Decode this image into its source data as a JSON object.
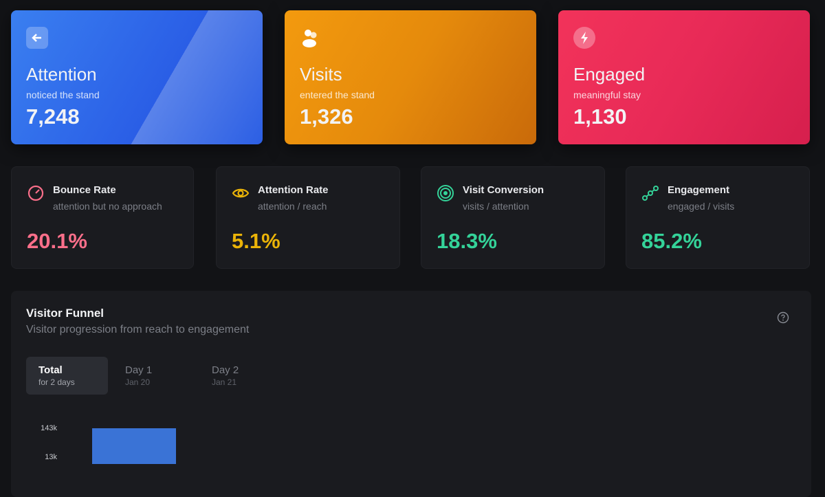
{
  "summary_cards": [
    {
      "title": "Attention",
      "subtitle": "noticed the stand",
      "value": "7,248"
    },
    {
      "title": "Visits",
      "subtitle": "entered the stand",
      "value": "1,326"
    },
    {
      "title": "Engaged",
      "subtitle": "meaningful stay",
      "value": "1,130"
    }
  ],
  "metrics": [
    {
      "title": "Bounce Rate",
      "subtitle": "attention but no approach",
      "value": "20.1%"
    },
    {
      "title": "Attention Rate",
      "subtitle": "attention / reach",
      "value": "5.1%"
    },
    {
      "title": "Visit Conversion",
      "subtitle": "visits / attention",
      "value": "18.3%"
    },
    {
      "title": "Engagement",
      "subtitle": "engaged / visits",
      "value": "85.2%"
    }
  ],
  "funnel": {
    "title": "Visitor Funnel",
    "subtitle": "Visitor progression from reach to engagement",
    "tabs": [
      {
        "label": "Total",
        "sublabel": "for 2 days"
      },
      {
        "label": "Day 1",
        "sublabel": "Jan 20"
      },
      {
        "label": "Day 2",
        "sublabel": "Jan 21"
      }
    ],
    "chart_data": {
      "type": "bar",
      "categories": [
        null
      ],
      "values": [
        143000
      ],
      "color": "#3a73d6",
      "log_scale": true,
      "ylim": [
        1000,
        143000
      ],
      "yticks": [
        {
          "value": 143000,
          "label": "143k"
        },
        {
          "value": 13000,
          "label": "13k"
        }
      ]
    }
  }
}
